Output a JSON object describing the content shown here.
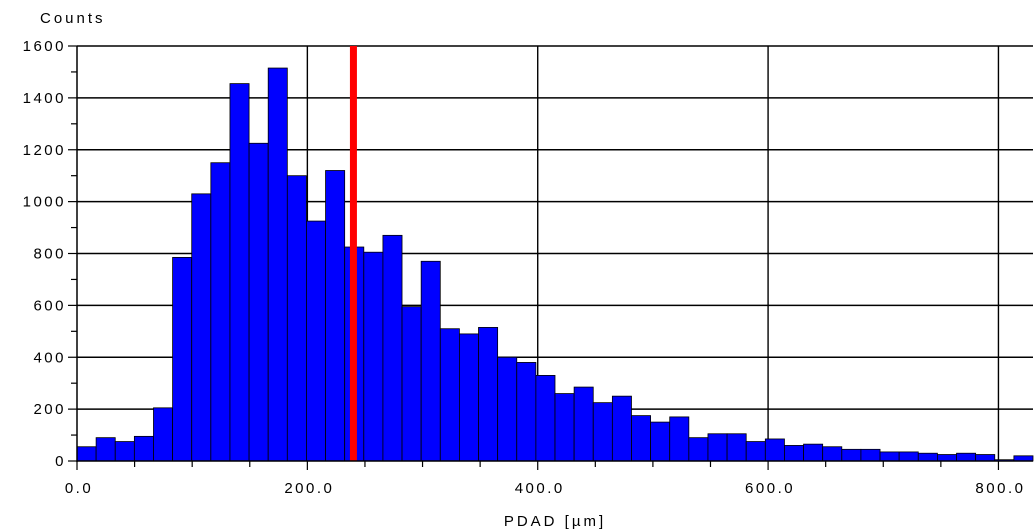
{
  "chart_data": {
    "type": "bar",
    "ylabel": "Counts",
    "xlabel": "PDAD [µm]",
    "xlim": [
      0,
      830
    ],
    "ylim": [
      0,
      1600
    ],
    "x_ticks": [
      0,
      200,
      400,
      600,
      800
    ],
    "x_tick_labels": [
      "0.0",
      "200.0",
      "400.0",
      "600.0",
      "800.0"
    ],
    "y_ticks": [
      0,
      200,
      400,
      600,
      800,
      1000,
      1200,
      1400,
      1600
    ],
    "y_tick_labels": [
      "0",
      "200",
      "400",
      "600",
      "800",
      "1000",
      "1200",
      "1400",
      "1600"
    ],
    "bin_width": 16.6,
    "bin_starts": [
      0,
      16.6,
      33.2,
      49.8,
      66.4,
      83,
      99.6,
      116.2,
      132.8,
      149.4,
      166,
      182.6,
      199.2,
      215.8,
      232.4,
      249,
      265.6,
      282.2,
      298.8,
      315.4,
      332,
      348.6,
      365.2,
      381.8,
      398.4,
      415,
      431.6,
      448.2,
      464.8,
      481.4,
      498,
      514.6,
      531.2,
      547.8,
      564.4,
      581,
      597.6,
      614.2,
      630.8,
      647.4,
      664,
      680.6,
      697.2,
      713.8,
      730.4,
      747,
      763.6,
      780.2,
      796.8,
      813.4
    ],
    "values": [
      55,
      90,
      75,
      95,
      205,
      785,
      1030,
      1150,
      1455,
      1225,
      1515,
      1100,
      925,
      1120,
      825,
      805,
      870,
      595,
      770,
      510,
      490,
      515,
      400,
      380,
      330,
      260,
      285,
      225,
      250,
      175,
      150,
      170,
      90,
      105,
      105,
      75,
      85,
      60,
      65,
      55,
      45,
      45,
      35,
      35,
      30,
      25,
      30,
      25,
      5,
      20
    ],
    "marker_x": 240,
    "colors": {
      "bar": "#0000ff",
      "bar_edge": "#000000",
      "marker": "#ff0000",
      "grid": "#000000"
    },
    "grid": true
  }
}
